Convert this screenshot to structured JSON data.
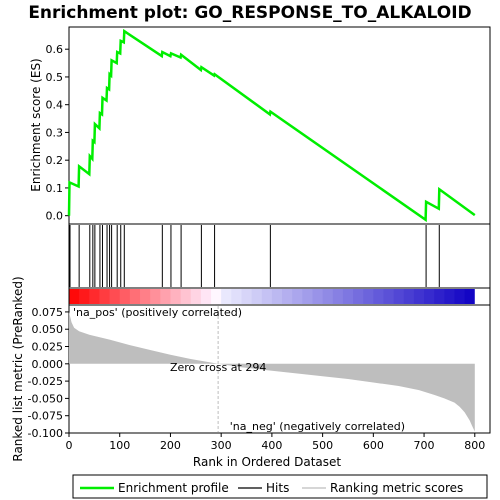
{
  "chart_data": {
    "type": "line",
    "title": "Enrichment plot: GO_RESPONSE_TO_ALKALOID",
    "top_panel": {
      "ylabel": "Enrichment score (ES)",
      "ylim": [
        -0.03,
        0.68
      ],
      "yticks": [
        "0.0",
        "0.1",
        "0.2",
        "0.3",
        "0.4",
        "0.5",
        "0.6"
      ],
      "es_profile": {
        "x": [
          0,
          1,
          19,
          20,
          40,
          41,
          46,
          47,
          50,
          51,
          60,
          61,
          65,
          66,
          74,
          75,
          79,
          80,
          83,
          84,
          94,
          95,
          101,
          102,
          108,
          109,
          183,
          184,
          200,
          201,
          220,
          221,
          260,
          261,
          286,
          287,
          396,
          397,
          703,
          704,
          729,
          730,
          800
        ],
        "y": [
          0.0,
          0.12,
          0.105,
          0.178,
          0.15,
          0.215,
          0.205,
          0.27,
          0.265,
          0.33,
          0.315,
          0.37,
          0.365,
          0.425,
          0.415,
          0.46,
          0.455,
          0.51,
          0.505,
          0.56,
          0.55,
          0.59,
          0.585,
          0.63,
          0.625,
          0.665,
          0.575,
          0.59,
          0.575,
          0.585,
          0.57,
          0.58,
          0.525,
          0.535,
          0.505,
          0.51,
          0.365,
          0.375,
          -0.015,
          0.05,
          0.025,
          0.095,
          0.002
        ]
      }
    },
    "hits": [
      2,
      20,
      41,
      47,
      51,
      61,
      66,
      75,
      80,
      84,
      95,
      102,
      109,
      184,
      201,
      221,
      261,
      287,
      397,
      704,
      730
    ],
    "bottom_panel": {
      "xlabel": "Rank in Ordered Dataset",
      "ylabel": "Ranked list metric (PreRanked)",
      "ylim": [
        -0.1,
        0.085
      ],
      "yticks": [
        "0.075",
        "0.050",
        "0.025",
        "0.000",
        "-0.025",
        "-0.050",
        "-0.075",
        "-0.100"
      ],
      "xticks": [
        "0",
        "100",
        "200",
        "300",
        "400",
        "500",
        "600",
        "700",
        "800"
      ],
      "xlim": [
        0,
        830
      ],
      "zero_cross_rank": 294,
      "zero_cross_label": "Zero cross at 294",
      "pos_label": "'na_pos' (positively correlated)",
      "neg_label": "'na_neg' (negatively correlated)",
      "metric_profile": {
        "x": [
          0,
          5,
          10,
          20,
          40,
          80,
          120,
          160,
          200,
          240,
          294,
          340,
          400,
          450,
          500,
          550,
          600,
          650,
          690,
          720,
          740,
          760,
          770,
          780,
          790,
          795,
          800
        ],
        "y": [
          0.075,
          0.06,
          0.052,
          0.047,
          0.042,
          0.035,
          0.027,
          0.02,
          0.013,
          0.007,
          0.0,
          -0.005,
          -0.01,
          -0.014,
          -0.018,
          -0.022,
          -0.027,
          -0.032,
          -0.038,
          -0.045,
          -0.05,
          -0.056,
          -0.062,
          -0.07,
          -0.082,
          -0.09,
          -0.098
        ]
      }
    },
    "legend": [
      "Enrichment profile",
      "Hits",
      "Ranking metric scores"
    ],
    "colors": {
      "profile": "#00ee00",
      "hits": "#000000",
      "metric": "#bebebe",
      "pos_label": "#cc0000",
      "neg_label": "#1a1aaa"
    }
  }
}
